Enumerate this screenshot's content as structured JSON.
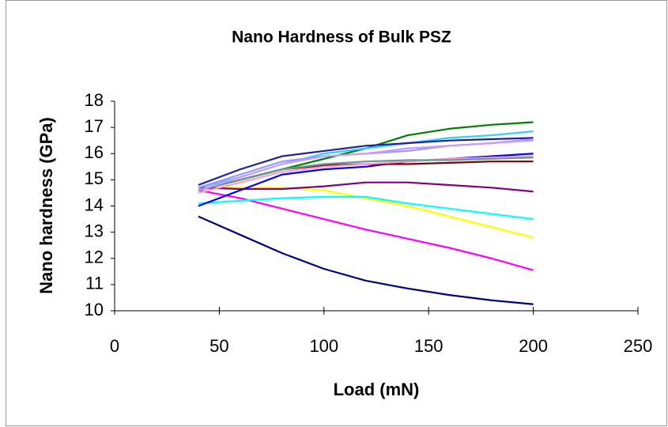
{
  "chart_data": {
    "type": "line",
    "title": "Nano Hardness of Bulk PSZ",
    "x_label": "Load (mN)",
    "y_label": "Nano hardness (GPa)",
    "x": [
      40,
      60,
      80,
      100,
      120,
      140,
      160,
      180,
      200
    ],
    "series": [
      {
        "color": "#000080",
        "values": [
          13.6,
          12.9,
          12.2,
          11.6,
          11.15,
          10.85,
          10.6,
          10.4,
          10.25
        ]
      },
      {
        "color": "#ff00ff",
        "values": [
          14.6,
          14.3,
          13.9,
          13.5,
          13.1,
          12.75,
          12.4,
          12.0,
          11.55
        ]
      },
      {
        "color": "#ffff00",
        "values": [
          14.7,
          14.7,
          14.7,
          14.6,
          14.3,
          14.0,
          13.6,
          13.2,
          12.8
        ]
      },
      {
        "color": "#00ffff",
        "values": [
          14.1,
          14.2,
          14.3,
          14.35,
          14.35,
          14.1,
          13.9,
          13.7,
          13.5
        ]
      },
      {
        "color": "#800080",
        "values": [
          14.7,
          14.65,
          14.65,
          14.75,
          14.9,
          14.9,
          14.8,
          14.7,
          14.55
        ]
      },
      {
        "color": "#0000ff",
        "values": [
          14.0,
          14.6,
          15.2,
          15.4,
          15.5,
          15.7,
          15.8,
          15.9,
          16.0
        ]
      },
      {
        "color": "#800000",
        "values": [
          14.6,
          15.0,
          15.4,
          15.55,
          15.6,
          15.6,
          15.65,
          15.7,
          15.7
        ]
      },
      {
        "color": "#008000",
        "values": [
          14.6,
          15.0,
          15.4,
          15.8,
          16.2,
          16.7,
          16.95,
          17.1,
          17.2
        ]
      },
      {
        "color": "#33ccff",
        "values": [
          14.7,
          15.1,
          15.6,
          16.0,
          16.2,
          16.4,
          16.6,
          16.7,
          16.85
        ]
      },
      {
        "color": "#1f1f9f",
        "values": [
          14.8,
          15.4,
          15.9,
          16.1,
          16.3,
          16.4,
          16.5,
          16.55,
          16.6
        ]
      },
      {
        "color": "#9999ff",
        "values": [
          14.7,
          15.2,
          15.7,
          15.9,
          16.0,
          16.1,
          16.3,
          16.4,
          16.55
        ]
      },
      {
        "color": "#ff99cc",
        "values": [
          14.5,
          14.9,
          15.3,
          15.5,
          15.6,
          15.7,
          15.8,
          15.85,
          15.9
        ]
      },
      {
        "color": "#669999",
        "values": [
          14.6,
          15.0,
          15.4,
          15.6,
          15.7,
          15.75,
          15.75,
          15.8,
          15.85
        ]
      },
      {
        "color": "#cc99ff",
        "values": [
          14.6,
          15.1,
          15.6,
          15.9,
          16.0,
          16.2,
          16.3,
          16.4,
          16.5
        ]
      }
    ],
    "xlim": [
      0,
      250
    ],
    "xticks": [
      0,
      50,
      100,
      150,
      200,
      250
    ],
    "ylim": [
      10,
      18
    ],
    "yticks": [
      10,
      11,
      12,
      13,
      14,
      15,
      16,
      17,
      18
    ],
    "grid": false
  }
}
